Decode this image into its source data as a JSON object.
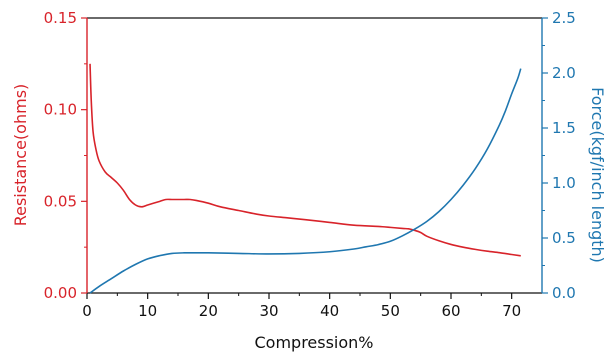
{
  "chart_data": {
    "type": "line",
    "title": "",
    "xlabel": "Compression%",
    "ylabel_left": "Resistance(ohms)",
    "ylabel_right": "Force(kgf/inch length)",
    "xlim": [
      0,
      75
    ],
    "ylim_left": [
      0,
      0.15
    ],
    "ylim_right": [
      0,
      2.5
    ],
    "x_ticks": [
      "0",
      "10",
      "20",
      "30",
      "40",
      "50",
      "60",
      "70"
    ],
    "x_tick_values": [
      0,
      10,
      20,
      30,
      40,
      50,
      60,
      70
    ],
    "y_left_ticks": [
      "0.00",
      "0.05",
      "0.10",
      "0.15"
    ],
    "y_left_tick_values": [
      0,
      0.05,
      0.1,
      0.15
    ],
    "y_right_ticks": [
      "0.0",
      "0.5",
      "1.0",
      "1.5",
      "2.0",
      "2.5"
    ],
    "y_right_tick_values": [
      0,
      0.5,
      1.0,
      1.5,
      2.0,
      2.5
    ],
    "grid": false,
    "colors": {
      "left": "#d8232a",
      "right": "#1f77b0",
      "frame": "#111111"
    },
    "series": [
      {
        "axis": "left",
        "x": [
          0.5,
          0.7,
          1,
          1.5,
          2,
          3,
          4,
          5,
          6,
          7,
          8,
          9,
          10,
          11,
          12,
          13,
          14,
          15,
          16,
          17,
          18,
          20,
          22,
          25,
          28,
          30,
          33,
          36,
          40,
          44,
          48,
          50,
          52,
          53,
          54,
          55,
          56,
          58,
          60,
          62,
          64,
          66,
          68,
          70,
          71.5
        ],
        "y": [
          0.125,
          0.105,
          0.088,
          0.078,
          0.072,
          0.066,
          0.063,
          0.06,
          0.056,
          0.051,
          0.048,
          0.047,
          0.048,
          0.049,
          0.05,
          0.051,
          0.051,
          0.051,
          0.051,
          0.051,
          0.0505,
          0.049,
          0.047,
          0.045,
          0.043,
          0.042,
          0.041,
          0.04,
          0.0385,
          0.037,
          0.0363,
          0.0358,
          0.0352,
          0.035,
          0.0342,
          0.033,
          0.031,
          0.0285,
          0.0265,
          0.025,
          0.0238,
          0.0228,
          0.022,
          0.021,
          0.0203
        ]
      },
      {
        "axis": "right",
        "x": [
          0.5,
          2,
          4,
          6,
          8,
          10,
          12,
          14,
          16,
          20,
          25,
          30,
          35,
          40,
          44,
          46,
          48,
          50,
          52,
          54,
          56,
          58,
          60,
          62,
          64,
          66,
          68,
          69,
          70,
          71,
          71.5
        ],
        "y": [
          0.0,
          0.06,
          0.13,
          0.2,
          0.26,
          0.31,
          0.34,
          0.36,
          0.365,
          0.365,
          0.36,
          0.355,
          0.36,
          0.375,
          0.4,
          0.42,
          0.44,
          0.47,
          0.52,
          0.58,
          0.65,
          0.74,
          0.85,
          0.98,
          1.13,
          1.31,
          1.53,
          1.66,
          1.81,
          1.95,
          2.04
        ]
      }
    ]
  }
}
